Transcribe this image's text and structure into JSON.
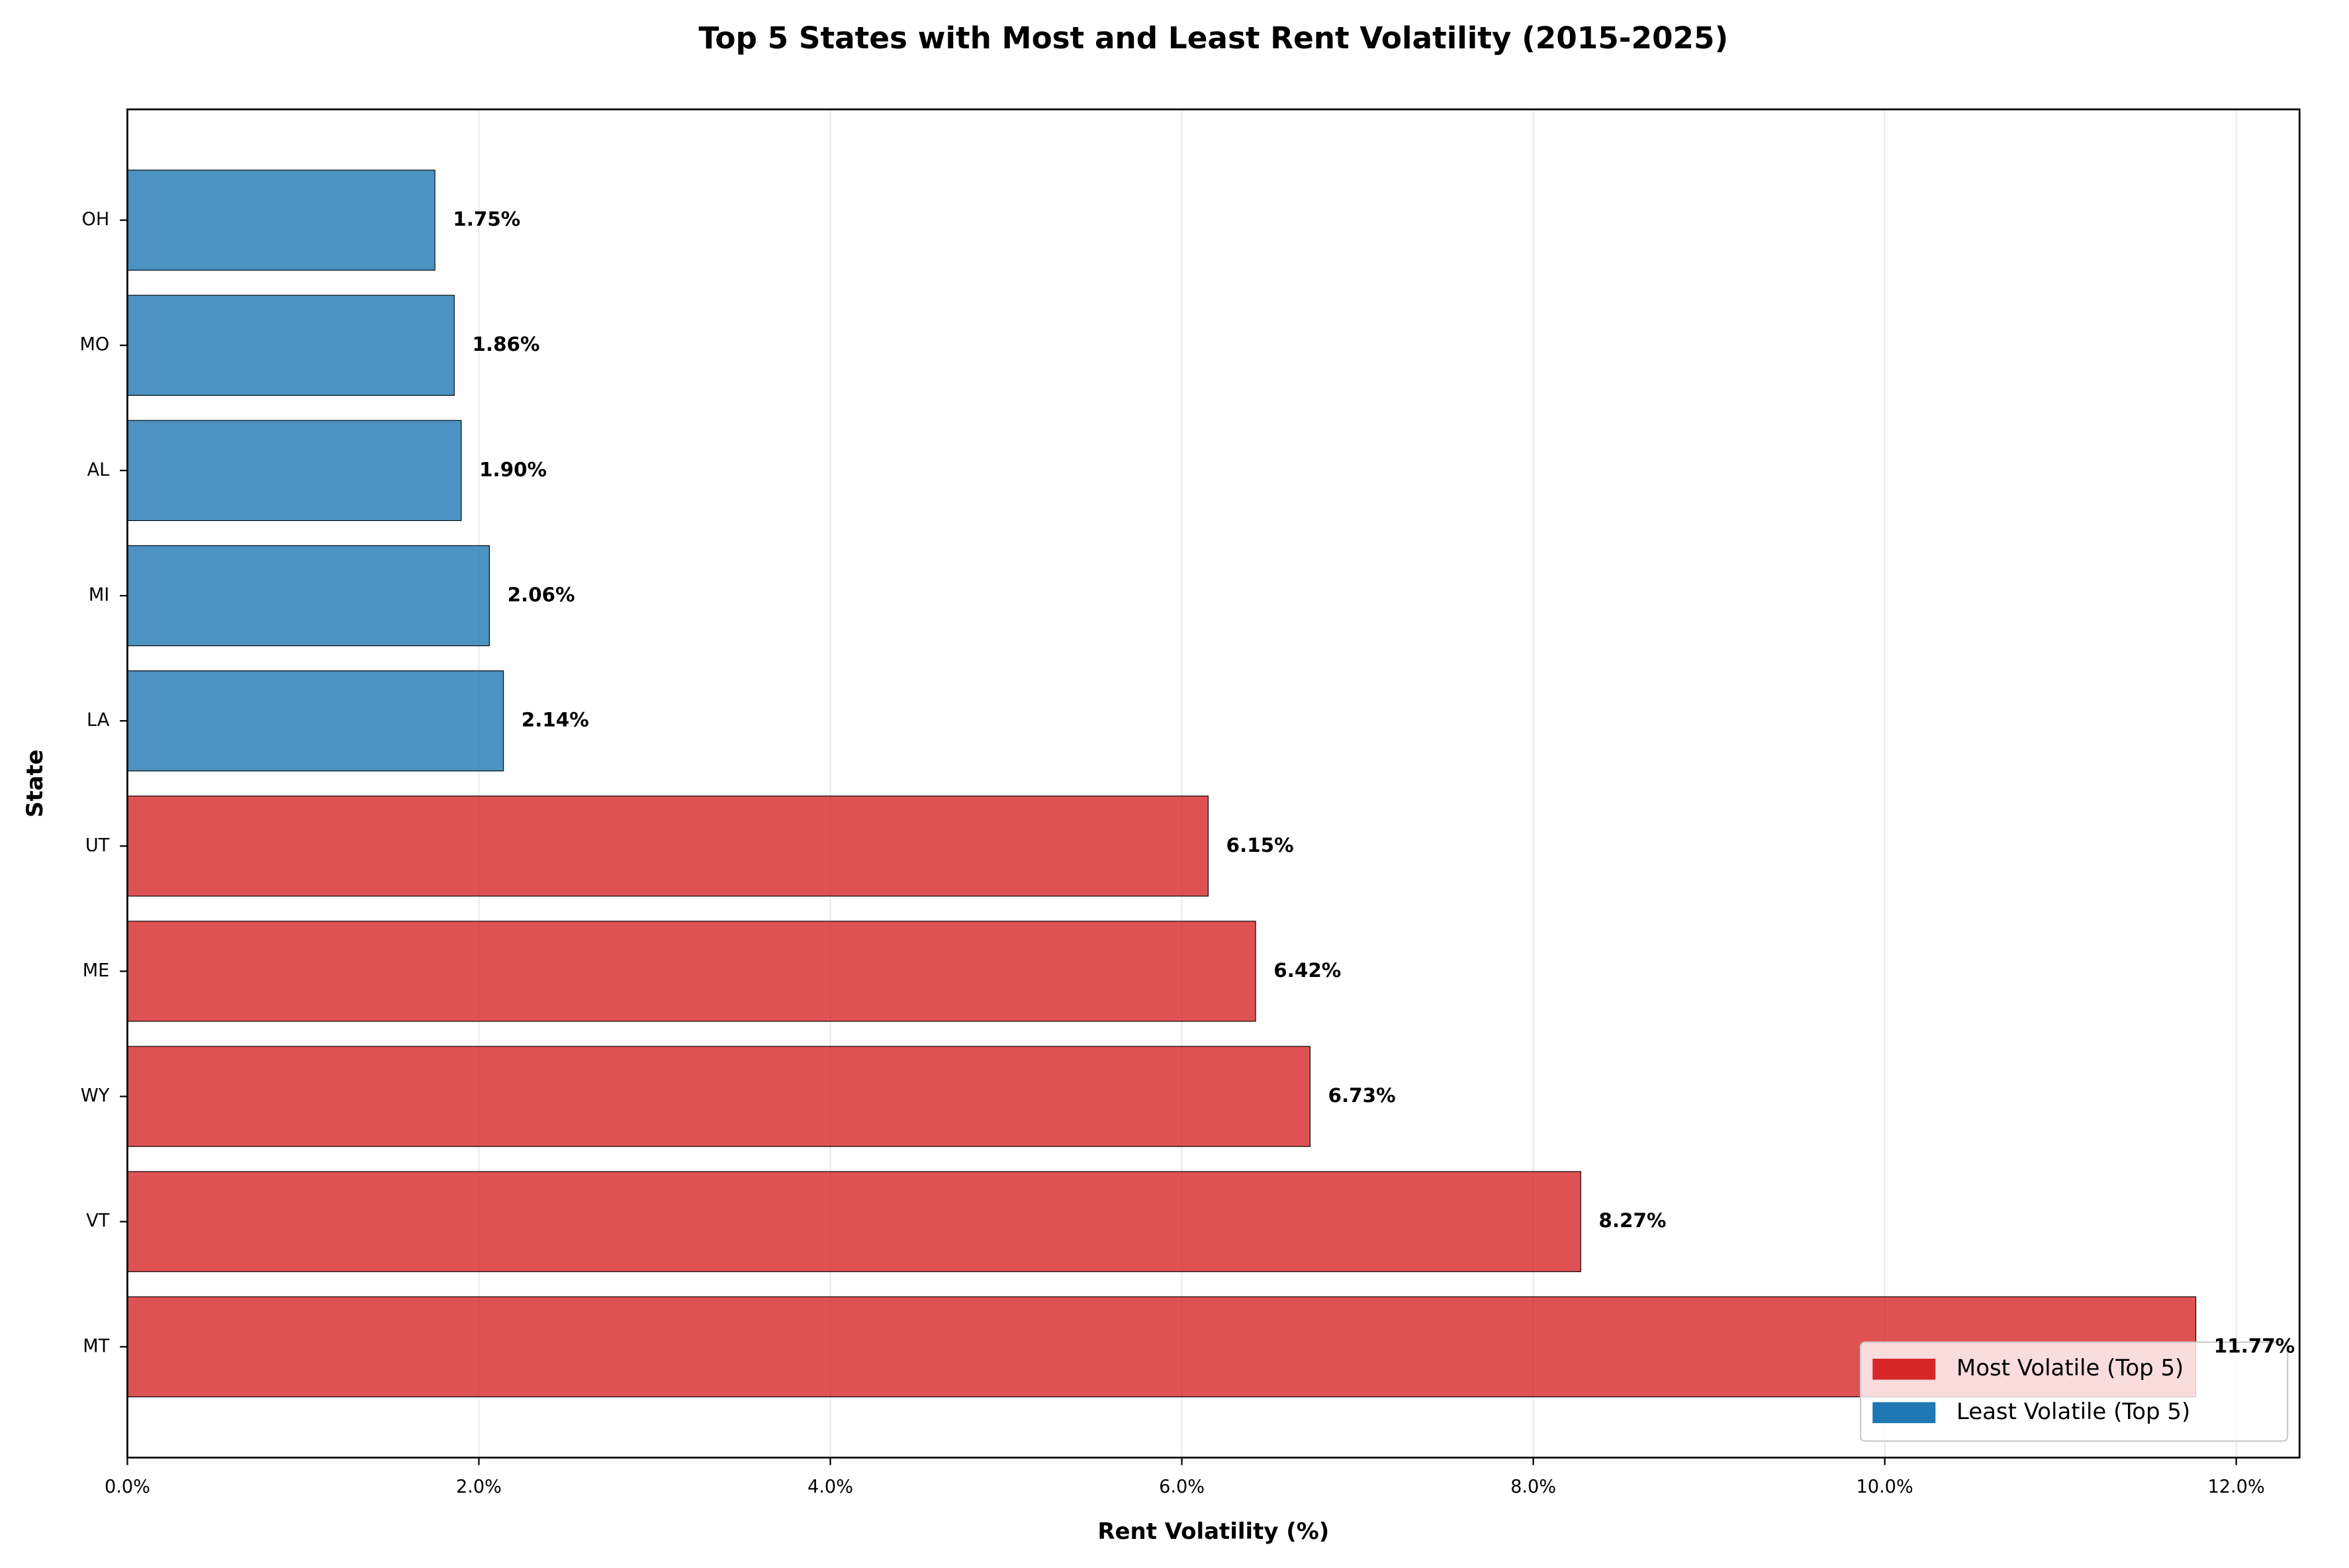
{
  "chart_data": {
    "type": "barh",
    "title": "Top 5 States with Most and Least Rent Volatility (2015-2025)",
    "x_label": "Rent Volatility (%)",
    "y_label": "State",
    "categories": [
      "MT",
      "VT",
      "WY",
      "ME",
      "UT",
      "LA",
      "MI",
      "AL",
      "MO",
      "OH"
    ],
    "values": [
      11.77,
      8.27,
      6.73,
      6.42,
      6.15,
      2.14,
      2.06,
      1.9,
      1.86,
      1.75
    ],
    "value_labels": [
      "11.77%",
      "8.27%",
      "6.73%",
      "6.42%",
      "6.15%",
      "2.14%",
      "2.06%",
      "1.90%",
      "1.86%",
      "1.75%"
    ],
    "colors": [
      "#d62728",
      "#d62728",
      "#d62728",
      "#d62728",
      "#d62728",
      "#1f77b4",
      "#1f77b4",
      "#1f77b4",
      "#1f77b4",
      "#1f77b4"
    ],
    "legend": [
      {
        "label": "Most Volatile (Top 5)",
        "color": "#d62728"
      },
      {
        "label": "Least Volatile (Top 5)",
        "color": "#1f77b4"
      }
    ],
    "legend_position": "lower right",
    "xlim": [
      0,
      12.36
    ],
    "xticks": [
      {
        "value": 0,
        "label": "0.0%"
      },
      {
        "value": 2,
        "label": "2.0%"
      },
      {
        "value": 4,
        "label": "4.0%"
      },
      {
        "value": 6,
        "label": "6.0%"
      },
      {
        "value": 8,
        "label": "8.0%"
      },
      {
        "value": 10,
        "label": "10.0%"
      },
      {
        "value": 12,
        "label": "12.0%"
      }
    ],
    "grid": true
  }
}
